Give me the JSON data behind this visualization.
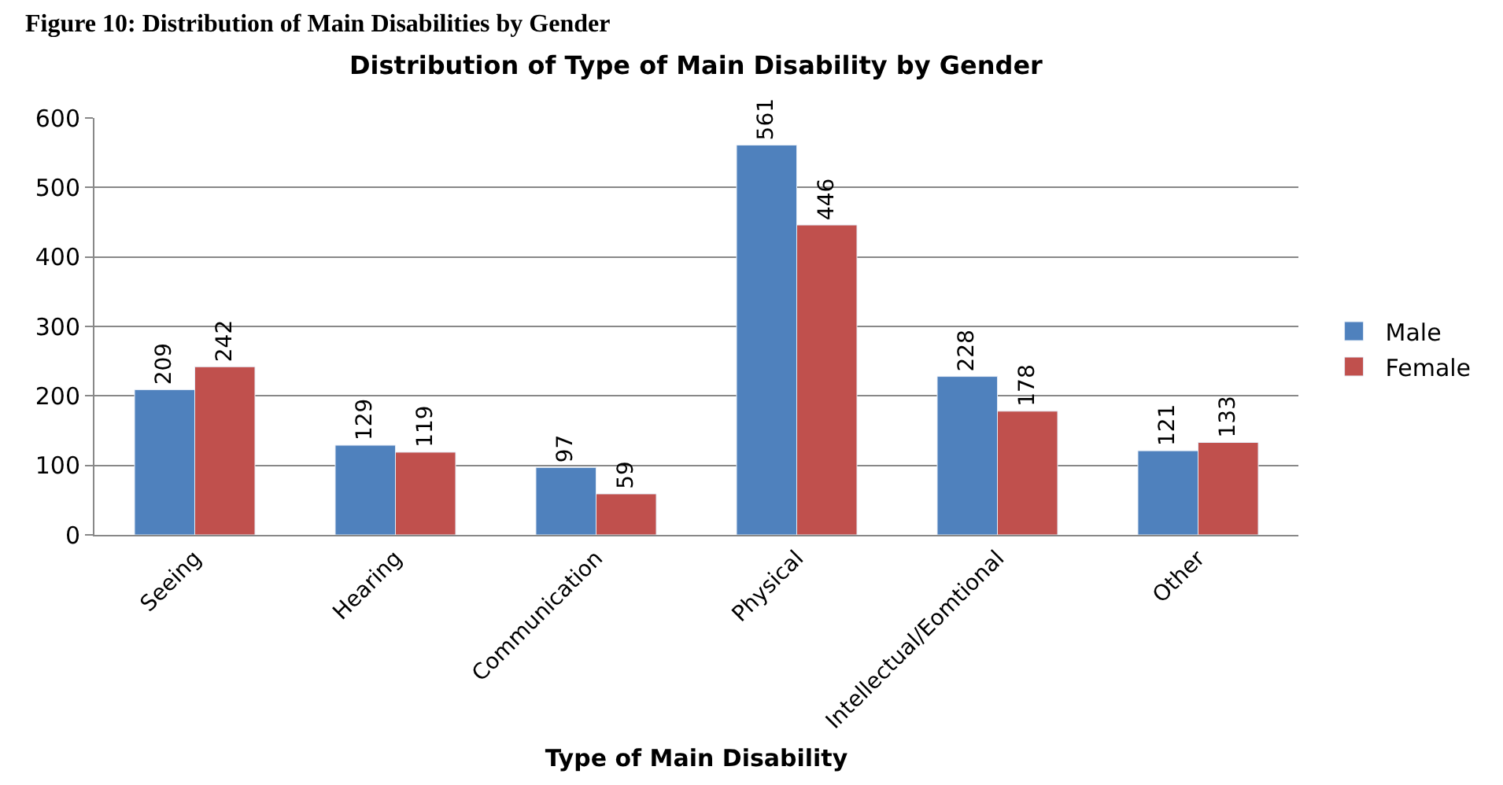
{
  "chart_data": {
    "type": "bar",
    "title": "Figure 10: Distribution of Main Disabilities by Gender",
    "subtitle": "Distribution of Type of Main Disability by Gender",
    "xlabel": "Type of Main Disability",
    "categories": [
      "Seeing",
      "Hearing",
      "Communication",
      "Physical",
      "Intellectual/Eomtional",
      "Other"
    ],
    "series": [
      {
        "name": "Male",
        "color": "#4f81bd",
        "values": [
          209,
          129,
          97,
          561,
          228,
          121
        ]
      },
      {
        "name": "Female",
        "color": "#c0504d",
        "values": [
          242,
          119,
          59,
          446,
          178,
          133
        ]
      }
    ],
    "ylim": [
      0,
      600
    ],
    "yticks": [
      0,
      100,
      200,
      300,
      400,
      500,
      600
    ],
    "grid": "y",
    "legend": "right",
    "data_labels": true
  }
}
